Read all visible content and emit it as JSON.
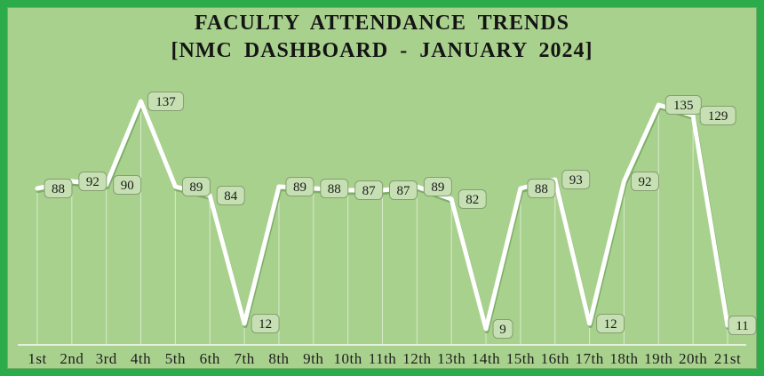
{
  "title": {
    "line1": "FACULTY ATTENDANCE TRENDS",
    "line2": "[NMC DASHBOARD - JANUARY 2024]"
  },
  "colors": {
    "background": "#a9d18e",
    "frame_border": "#2cab4b",
    "trend_line": "#ffffff",
    "trend_line_shadow": "#6fa35a",
    "drop_line": "rgba(255,255,255,0.55)",
    "axis_line": "rgba(255,255,255,0.9)",
    "label_fill": "#c6e0b4",
    "label_border": "#849e70",
    "label_text": "#1a1a1a",
    "tick_text": "#1d1d1d",
    "title_text": "#141414"
  },
  "chart_data": {
    "type": "line",
    "title": "FACULTY ATTENDANCE TRENDS [NMC DASHBOARD - JANUARY 2024]",
    "categories": [
      "1st",
      "2nd",
      "3rd",
      "4th",
      "5th",
      "6th",
      "7th",
      "8th",
      "9th",
      "10th",
      "11th",
      "12th",
      "13th",
      "14th",
      "15th",
      "16th",
      "17th",
      "18th",
      "19th",
      "20th",
      "21st"
    ],
    "values": [
      88,
      92,
      90,
      137,
      89,
      84,
      12,
      89,
      88,
      87,
      87,
      89,
      82,
      9,
      88,
      93,
      12,
      92,
      135,
      129,
      11
    ],
    "xlabel": "",
    "ylabel": "",
    "ylim": [
      0,
      145
    ],
    "grid": false,
    "legend": false,
    "data_labels": true,
    "drop_lines": true,
    "line_width": 5
  }
}
